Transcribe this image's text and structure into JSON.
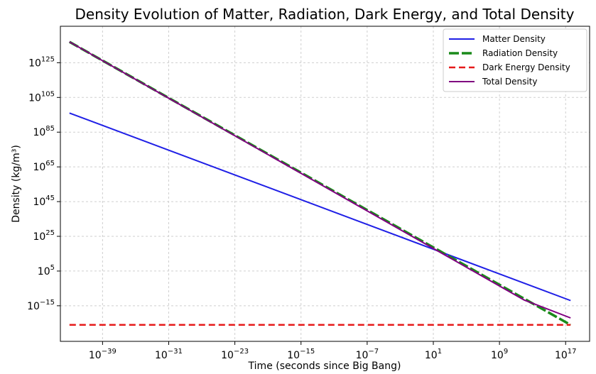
{
  "chart_data": {
    "type": "line",
    "title": "Density Evolution of Matter, Radiation, Dark Energy, and Total Density",
    "xlabel": "Time (seconds since Big Bang)",
    "ylabel": "Density (kg/m³)",
    "x_scale": "log",
    "y_scale": "log",
    "xlim_exp": [
      -44.1,
      19.9
    ],
    "ylim_exp": [
      -35.5,
      146
    ],
    "x_ticks": [
      {
        "base": "10",
        "exp": "−39",
        "value_exp": -39
      },
      {
        "base": "10",
        "exp": "−31",
        "value_exp": -31
      },
      {
        "base": "10",
        "exp": "−23",
        "value_exp": -23
      },
      {
        "base": "10",
        "exp": "−15",
        "value_exp": -15
      },
      {
        "base": "10",
        "exp": "−7",
        "value_exp": -7
      },
      {
        "base": "10",
        "exp": "1",
        "value_exp": 1
      },
      {
        "base": "10",
        "exp": "9",
        "value_exp": 9
      },
      {
        "base": "10",
        "exp": "17",
        "value_exp": 17
      }
    ],
    "y_ticks": [
      {
        "base": "10",
        "exp": "−15",
        "value_exp": -15
      },
      {
        "base": "10",
        "exp": "5",
        "value_exp": 5
      },
      {
        "base": "10",
        "exp": "25",
        "value_exp": 25
      },
      {
        "base": "10",
        "exp": "45",
        "value_exp": 45
      },
      {
        "base": "10",
        "exp": "65",
        "value_exp": 65
      },
      {
        "base": "10",
        "exp": "85",
        "value_exp": 85
      },
      {
        "base": "10",
        "exp": "105",
        "value_exp": 105
      },
      {
        "base": "10",
        "exp": "125",
        "value_exp": 125
      }
    ],
    "grid": true,
    "legend_position": "top-right",
    "series": [
      {
        "name": "Matter Density",
        "color": "#1f1fe6",
        "style": "solid",
        "width": 2,
        "x_exp": [
          -43,
          17.6
        ],
        "y_exp": [
          96,
          -12
        ]
      },
      {
        "name": "Radiation Density",
        "color": "#1a8a1a",
        "style": "dashed",
        "width": 3.5,
        "x_exp": [
          -43,
          17.6
        ],
        "y_exp": [
          137,
          -26
        ]
      },
      {
        "name": "Dark Energy Density",
        "color": "#e61a1a",
        "style": "dashed",
        "width": 2.5,
        "x_exp": [
          -43,
          17.6
        ],
        "y_exp": [
          -26,
          -26
        ]
      },
      {
        "name": "Total Density",
        "color": "#800080",
        "style": "solid",
        "width": 2,
        "x_exp": [
          -43,
          12,
          17.6
        ],
        "y_exp": [
          137,
          -11.7,
          -22
        ]
      }
    ]
  }
}
